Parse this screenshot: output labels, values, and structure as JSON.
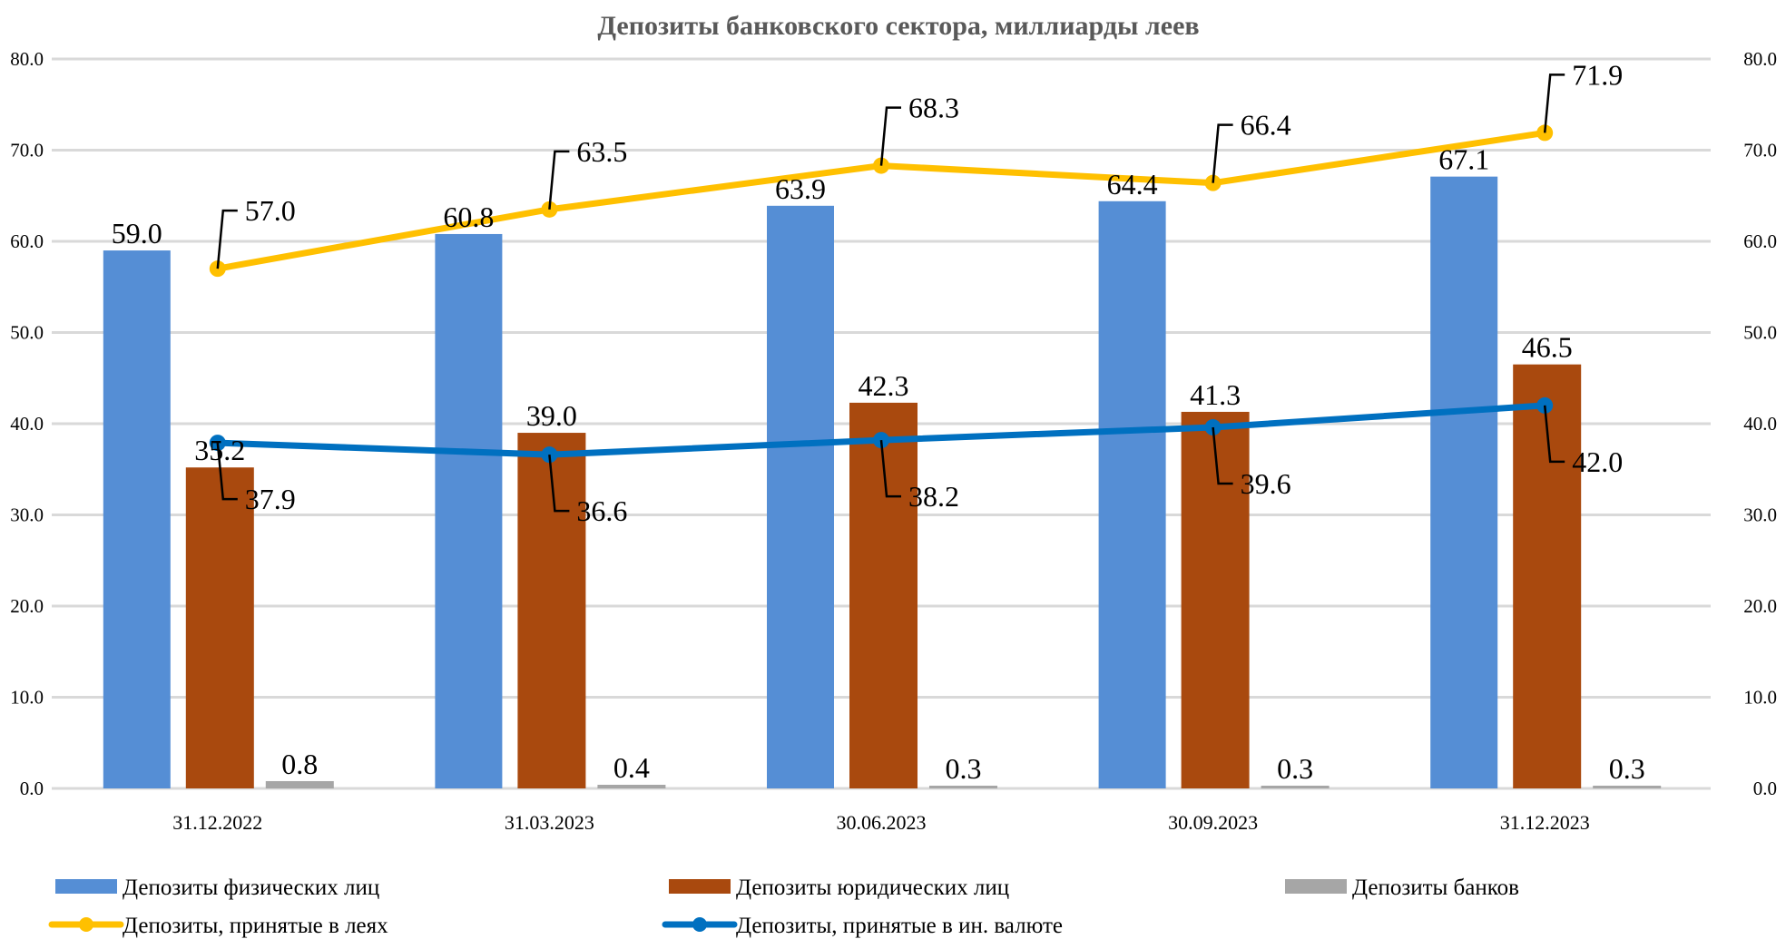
{
  "chart_data": {
    "type": "bar",
    "title": "Депозиты банковского сектора, миллиарды леев",
    "categories": [
      "31.12.2022",
      "31.03.2023",
      "30.06.2023",
      "30.09.2023",
      "31.12.2023"
    ],
    "ylim": [
      0,
      80
    ],
    "y_ticks": [
      "0.0",
      "10.0",
      "20.0",
      "30.0",
      "40.0",
      "50.0",
      "60.0",
      "70.0",
      "80.0"
    ],
    "y2_ticks": [
      "0.0",
      "10.0",
      "20.0",
      "30.0",
      "40.0",
      "50.0",
      "60.0",
      "70.0",
      "80.0"
    ],
    "grid": true,
    "legend_position": "bottom",
    "series": [
      {
        "name": "Депозиты физических лиц",
        "type": "bar",
        "color": "#558ED5",
        "values": [
          59.0,
          60.8,
          63.9,
          64.4,
          67.1
        ],
        "labels": [
          "59.0",
          "60.8",
          "63.9",
          "64.4",
          "67.1"
        ]
      },
      {
        "name": "Депозиты юридических лиц",
        "type": "bar",
        "color": "#A9490E",
        "values": [
          35.2,
          39.0,
          42.3,
          41.3,
          46.5
        ],
        "labels": [
          "35.2",
          "39.0",
          "42.3",
          "41.3",
          "46.5"
        ]
      },
      {
        "name": "Депозиты банков",
        "type": "bar",
        "color": "#A6A6A6",
        "values": [
          0.8,
          0.4,
          0.3,
          0.3,
          0.3
        ],
        "labels": [
          "0.8",
          "0.4",
          "0.3",
          "0.3",
          "0.3"
        ]
      },
      {
        "name": "Депозиты, принятые в леях",
        "type": "line",
        "color": "#FFC000",
        "values": [
          57.0,
          63.5,
          68.3,
          66.4,
          71.9
        ],
        "labels": [
          "57.0",
          "63.5",
          "68.3",
          "66.4",
          "71.9"
        ]
      },
      {
        "name": "Депозиты, принятые в ин. валюте",
        "type": "line",
        "color": "#0070C0",
        "values": [
          37.9,
          36.6,
          38.2,
          39.6,
          42.0
        ],
        "labels": [
          "37.9",
          "36.6",
          "38.2",
          "39.6",
          "42.0"
        ]
      }
    ]
  }
}
